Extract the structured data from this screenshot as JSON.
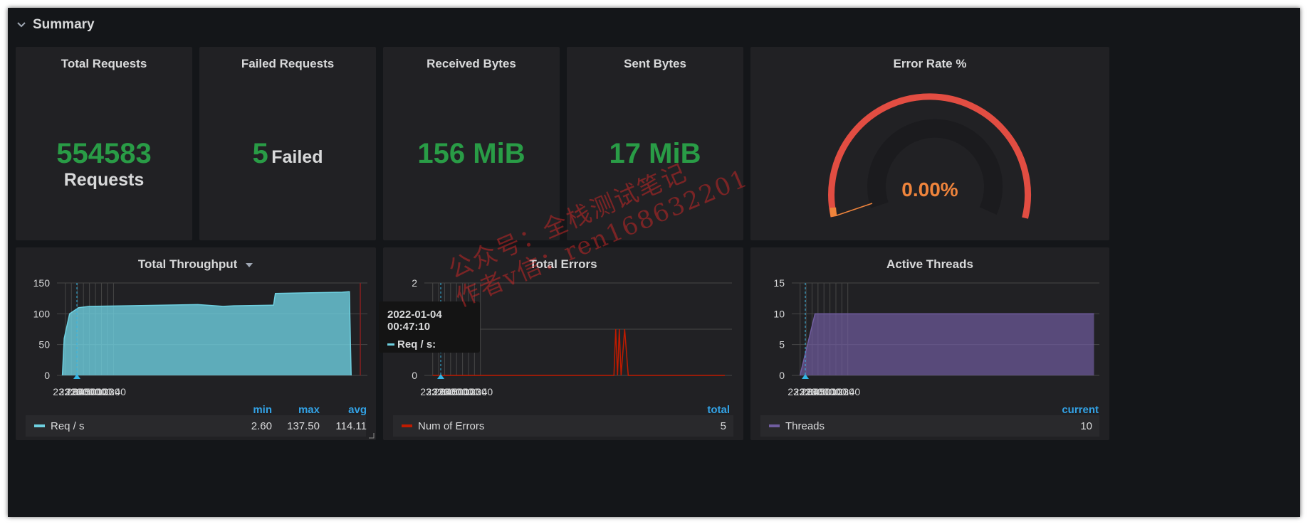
{
  "row": {
    "title": "Summary"
  },
  "stats": [
    {
      "title": "Total Requests",
      "value": "554583",
      "unit": "Requests"
    },
    {
      "title": "Failed Requests",
      "value": "5",
      "unit": "Failed"
    },
    {
      "title": "Received Bytes",
      "value": "156 MiB"
    },
    {
      "title": "Sent Bytes",
      "value": "17 MiB"
    }
  ],
  "gauge": {
    "title": "Error Rate %",
    "value": "0.00%",
    "colors": {
      "arc": "#e24d42",
      "value": "#ef843c",
      "threshold": "#ef843c"
    }
  },
  "throughput": {
    "title": "Total Throughput",
    "legend": {
      "headers": [
        "min",
        "max",
        "avg"
      ],
      "series": "Req / s",
      "min": "2.60",
      "max": "137.50",
      "avg": "114.11"
    },
    "tooltip": {
      "time": "2022-01-04 00:47:10",
      "series": "Req / s:"
    }
  },
  "errors": {
    "title": "Total Errors",
    "legend": {
      "header": "total",
      "series": "Num of Errors",
      "value": "5"
    }
  },
  "threads": {
    "title": "Active Threads",
    "legend": {
      "header": "current",
      "series": "Threads",
      "value": "10"
    }
  },
  "watermark": {
    "line1": "公众号：全栈测试笔记",
    "line2": "作者v信：ren168632201"
  },
  "chart_data": [
    {
      "type": "area",
      "title": "Total Throughput",
      "x": [
        "23:20",
        "23:30",
        "23:40",
        "23:50",
        "00:00",
        "00:10",
        "00:20",
        "00:30",
        "00:40"
      ],
      "yticks": [
        "0",
        "50",
        "100",
        "150"
      ],
      "ylim": [
        0,
        150
      ],
      "series": [
        {
          "name": "Req / s",
          "color": "#6ed0e0",
          "points": [
            [
              23.25,
              0
            ],
            [
              23.3,
              60
            ],
            [
              23.45,
              100
            ],
            [
              23.7,
              110
            ],
            [
              24.0,
              112
            ],
            [
              25.0,
              113
            ],
            [
              26.0,
              114
            ],
            [
              27.0,
              115
            ],
            [
              27.5,
              113
            ],
            [
              27.7,
              112
            ],
            [
              28.0,
              113
            ],
            [
              29.1,
              114
            ],
            [
              29.15,
              133
            ],
            [
              30.0,
              134
            ],
            [
              31.0,
              135
            ],
            [
              31.2,
              136
            ],
            [
              31.25,
              0
            ]
          ]
        }
      ]
    },
    {
      "type": "line",
      "title": "Total Errors",
      "x": [
        "23:20",
        "23:30",
        "23:40",
        "23:50",
        "00:00",
        "00:10",
        "00:20",
        "00:30",
        "00:40"
      ],
      "yticks": [
        "0",
        "1",
        "2"
      ],
      "ylim": [
        0,
        2
      ],
      "series": [
        {
          "name": "Num of Errors",
          "color": "#bf1b00",
          "points": [
            [
              23.33,
              0
            ],
            [
              28.4,
              0
            ],
            [
              28.45,
              1
            ],
            [
              28.5,
              0
            ],
            [
              28.55,
              1
            ],
            [
              28.6,
              0
            ],
            [
              28.7,
              1
            ],
            [
              28.8,
              0
            ],
            [
              31.5,
              0
            ]
          ]
        }
      ]
    },
    {
      "type": "area",
      "title": "Active Threads",
      "x": [
        "23:20",
        "23:30",
        "23:40",
        "23:50",
        "00:00",
        "00:10",
        "00:20",
        "00:30",
        "00:40"
      ],
      "yticks": [
        "0",
        "5",
        "10",
        "15"
      ],
      "ylim": [
        0,
        15
      ],
      "series": [
        {
          "name": "Threads",
          "color": "#705da0",
          "points": [
            [
              23.33,
              0
            ],
            [
              23.75,
              10
            ],
            [
              31.55,
              10
            ]
          ]
        }
      ]
    }
  ]
}
